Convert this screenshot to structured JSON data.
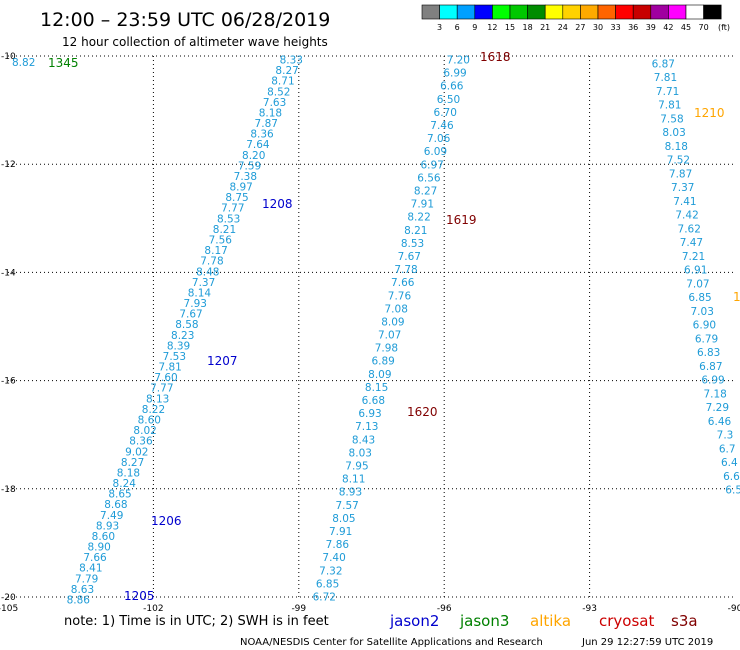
{
  "header": {
    "title": "12:00 – 23:59 UTC 06/28/2019",
    "subtitle": "12 hour collection of altimeter wave heights"
  },
  "legend": {
    "unit": "(ft)",
    "bins": [
      {
        "color": "#808080",
        "label": "3"
      },
      {
        "color": "#00ffff",
        "label": "6"
      },
      {
        "color": "#00a0ff",
        "label": "9"
      },
      {
        "color": "#0000ff",
        "label": "12"
      },
      {
        "color": "#00ff00",
        "label": "15"
      },
      {
        "color": "#00c800",
        "label": "18"
      },
      {
        "color": "#008c00",
        "label": "21"
      },
      {
        "color": "#ffff00",
        "label": "24"
      },
      {
        "color": "#ffd200",
        "label": "27"
      },
      {
        "color": "#ffaa00",
        "label": "30"
      },
      {
        "color": "#ff6400",
        "label": "33"
      },
      {
        "color": "#ff0000",
        "label": "36"
      },
      {
        "color": "#c80000",
        "label": "39"
      },
      {
        "color": "#a000a0",
        "label": "42"
      },
      {
        "color": "#ff00ff",
        "label": "45"
      },
      {
        "color": "#ffffff",
        "label": "70"
      },
      {
        "color": "#000000",
        "label": ""
      }
    ]
  },
  "map": {
    "lon_range": [
      -105,
      -90
    ],
    "lat_range": [
      -20,
      -10
    ],
    "lon_ticks": [
      "-105",
      "-102",
      "-99",
      "-96",
      "-93",
      "-90"
    ],
    "lat_ticks": [
      "-10",
      "-12",
      "-14",
      "-16",
      "-18",
      "-20"
    ],
    "passes": [
      {
        "satellite": "jason2",
        "color": "#1e9bd7",
        "values": [
          "8.33",
          "8.27",
          "8.71",
          "8.52",
          "7.63",
          "8.18",
          "7.87",
          "8.36",
          "7.64",
          "8.20",
          "7.59",
          "7.38",
          "8.97",
          "8.75",
          "7.77",
          "8.53",
          "8.21",
          "7.56",
          "8.17",
          "7.78",
          "8.48",
          "7.37",
          "8.14",
          "7.93",
          "7.67",
          "8.58",
          "8.23",
          "8.39",
          "7.53",
          "7.81",
          "7.60",
          "7.77",
          "8.13",
          "8.22",
          "8.60",
          "8.02",
          "8.36",
          "9.02",
          "8.27",
          "8.18",
          "8.24",
          "8.65",
          "8.68",
          "7.49",
          "8.93",
          "8.60",
          "8.90",
          "7.66",
          "8.41",
          "7.79",
          "8.63",
          "8.86"
        ]
      },
      {
        "satellite": "jason2",
        "color": "#1e9bd7",
        "values": [
          "7.20",
          "6.99",
          "6.66",
          "6.50",
          "6.70",
          "7.46",
          "7.06",
          "6.09",
          "6.97",
          "6.56",
          "8.27",
          "7.91",
          "8.22",
          "8.21",
          "8.53",
          "7.67",
          "7.78",
          "7.66",
          "7.76",
          "7.08",
          "8.09",
          "7.07",
          "7.98",
          "6.89",
          "8.09",
          "8.15",
          "6.68",
          "6.93",
          "7.13",
          "8.43",
          "8.03",
          "7.95",
          "8.11",
          "8.93",
          "7.57",
          "8.05",
          "7.91",
          "7.86",
          "7.40",
          "7.32",
          "6.85",
          "6.72"
        ]
      },
      {
        "satellite": "jason2",
        "color": "#1e9bd7",
        "values": [
          "6.87",
          "7.81",
          "7.71",
          "7.81",
          "7.58",
          "8.03",
          "8.18",
          "7.52",
          "7.87",
          "7.37",
          "7.41",
          "7.42",
          "7.62",
          "7.47",
          "7.21",
          "6.91",
          "7.07",
          "6.85",
          "7.03",
          "6.90",
          "6.79",
          "6.83",
          "6.87",
          "6.99",
          "7.18",
          "7.29",
          "6.46",
          "7.3",
          "6.7",
          "6.4",
          "6.6",
          "6.5"
        ]
      }
    ],
    "time_labels": [
      {
        "text": "1345",
        "color": "#008000"
      },
      {
        "text": "1618",
        "color": "#800000"
      },
      {
        "text": "1210",
        "color": "#ffa500"
      },
      {
        "text": "1208",
        "color": "#0000cd"
      },
      {
        "text": "1619",
        "color": "#800000"
      },
      {
        "text": "1207",
        "color": "#0000cd"
      },
      {
        "text": "1620",
        "color": "#800000"
      },
      {
        "text": "1206",
        "color": "#0000cd"
      },
      {
        "text": "1205",
        "color": "#0000cd"
      },
      {
        "text": "1",
        "color": "#ffa500"
      }
    ],
    "corner_value": "8.82"
  },
  "footer": {
    "note": "note: 1) Time is in UTC; 2) SWH is in feet",
    "satellites": [
      {
        "name": "jason2",
        "color": "#0000cd"
      },
      {
        "name": "jason3",
        "color": "#008000"
      },
      {
        "name": "altika",
        "color": "#ffa500"
      },
      {
        "name": "cryosat",
        "color": "#cc0000"
      },
      {
        "name": "s3a",
        "color": "#800000"
      }
    ],
    "credit": "NOAA/NESDIS Center for Satellite Applications and Research",
    "timestamp": "Jun 29 12:27:59 UTC 2019"
  }
}
